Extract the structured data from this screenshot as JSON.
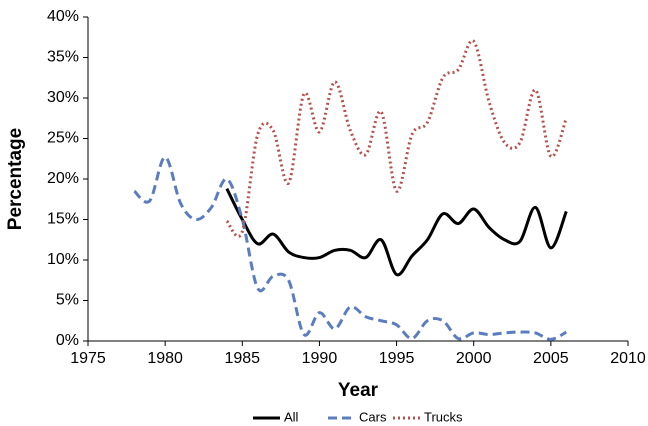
{
  "chart_data": {
    "type": "line",
    "xlabel": "Year",
    "ylabel": "Percentage",
    "x": [
      1978,
      1979,
      1980,
      1981,
      1982,
      1983,
      1984,
      1985,
      1986,
      1987,
      1988,
      1989,
      1990,
      1991,
      1992,
      1993,
      1994,
      1995,
      1996,
      1997,
      1998,
      1999,
      2000,
      2001,
      2002,
      2003,
      2004,
      2005,
      2006
    ],
    "series": [
      {
        "name": "All",
        "color": "#000000",
        "style": "solid",
        "values": [
          null,
          null,
          null,
          null,
          null,
          null,
          18.8,
          15,
          12,
          13.2,
          11,
          10.3,
          10.3,
          11.2,
          11.2,
          10.3,
          12.5,
          8.2,
          10.5,
          12.5,
          15.7,
          14.5,
          16.3,
          14,
          12.5,
          12.3,
          16.5,
          11.5,
          16
        ]
      },
      {
        "name": "Cars",
        "color": "#5b7dbf",
        "style": "dashed",
        "values": [
          18.5,
          17.3,
          22.7,
          17,
          15,
          16.5,
          20,
          15,
          6.5,
          8,
          7.5,
          0.8,
          3.5,
          1.5,
          4.2,
          3,
          2.5,
          2,
          0.3,
          2.5,
          2.5,
          0.3,
          1,
          0.8,
          1,
          1.1,
          1,
          0.2,
          1.1
        ]
      },
      {
        "name": "Trucks",
        "color": "#b5504b",
        "style": "dotted",
        "values": [
          null,
          null,
          null,
          null,
          null,
          null,
          14.8,
          13.5,
          25.5,
          26,
          19.5,
          30.5,
          25.8,
          32,
          26,
          23,
          28.3,
          18.5,
          25.5,
          27,
          32.5,
          33.5,
          37,
          29.5,
          24.5,
          24.5,
          31,
          22.8,
          27.5
        ]
      }
    ],
    "xlim": [
      1975,
      2010
    ],
    "xticks": [
      1975,
      1980,
      1985,
      1990,
      1995,
      2000,
      2005,
      2010
    ],
    "ylim": [
      0,
      40
    ],
    "yticks": [
      {
        "value": 0,
        "label": "0%"
      },
      {
        "value": 5,
        "label": "5%"
      },
      {
        "value": 10,
        "label": "10%"
      },
      {
        "value": 15,
        "label": "15%"
      },
      {
        "value": 20,
        "label": "20%"
      },
      {
        "value": 25,
        "label": "25%"
      },
      {
        "value": 30,
        "label": "30%"
      },
      {
        "value": 35,
        "label": "35%"
      },
      {
        "value": 40,
        "label": "40%"
      }
    ],
    "grid": false,
    "legend": "bottom"
  }
}
